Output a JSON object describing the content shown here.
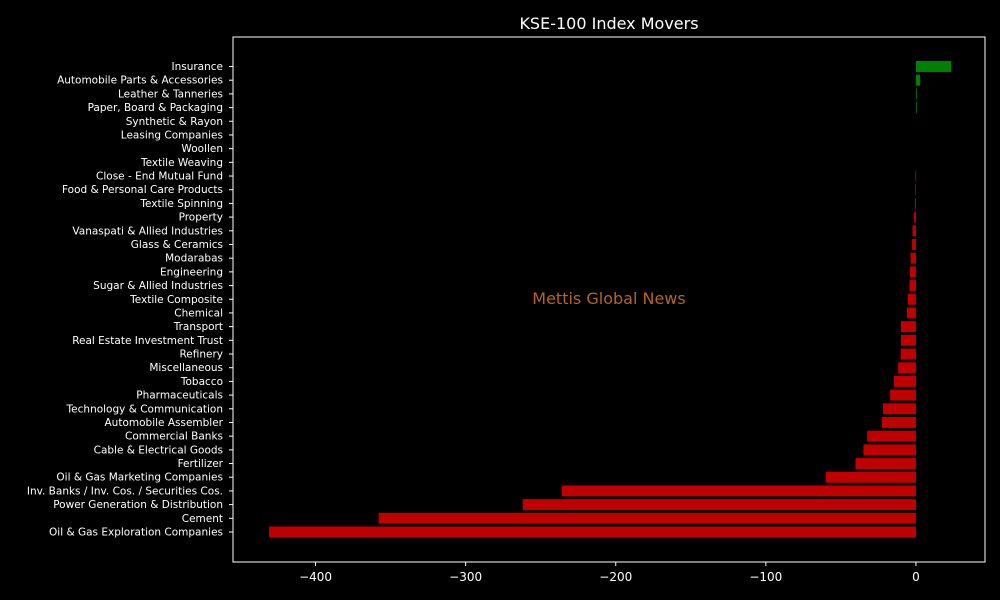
{
  "chart_data": {
    "type": "bar",
    "orientation": "horizontal",
    "title": "KSE-100 Index Movers",
    "watermark": "Mettis Global News",
    "xlabel": "",
    "ylabel": "",
    "xlim": [
      -455,
      46
    ],
    "xticks": [
      -400,
      -300,
      -200,
      -100,
      0
    ],
    "xtick_labels": [
      "−400",
      "−300",
      "−200",
      "−100",
      "0"
    ],
    "grid": false,
    "legend": "none",
    "colors": {
      "positive": "#008000",
      "negative": "#c00000",
      "background": "#000000",
      "text": "#ffffff",
      "watermark": "#b5651d"
    },
    "categories": [
      "Insurance",
      "Automobile Parts & Accessories",
      "Leather & Tanneries",
      "Paper, Board & Packaging",
      "Synthetic & Rayon",
      "Leasing Companies",
      "Woollen",
      "Textile Weaving",
      "Close - End Mutual Fund",
      "Food & Personal Care Products",
      "Textile Spinning",
      "Property",
      "Vanaspati & Allied Industries",
      "Glass & Ceramics",
      "Modarabas",
      "Engineering",
      "Sugar & Allied Industries",
      "Textile Composite",
      "Chemical",
      "Transport",
      "Real Estate Investment Trust",
      "Refinery",
      "Miscellaneous",
      "Tobacco",
      "Pharmaceuticals",
      "Technology & Communication",
      "Automobile Assembler",
      "Commercial Banks",
      "Cable & Electrical Goods",
      "Fertilizer",
      "Oil & Gas Marketing Companies",
      "Inv. Banks / Inv. Cos. / Securities Cos.",
      "Power Generation & Distribution",
      "Cement",
      "Oil & Gas Exploration Companies"
    ],
    "values": [
      23.5,
      2.8,
      0.5,
      0.4,
      0.0,
      0.0,
      0.0,
      0.0,
      -0.4,
      -0.5,
      -0.7,
      -1.3,
      -2.3,
      -2.6,
      -3.6,
      -4.0,
      -4.3,
      -5.3,
      -6.0,
      -10.0,
      -10.0,
      -10.2,
      -11.9,
      -14.6,
      -17.2,
      -22.0,
      -22.7,
      -32.5,
      -35.0,
      -40.3,
      -60.0,
      -236.0,
      -262.0,
      -358.0,
      -431.0
    ]
  }
}
